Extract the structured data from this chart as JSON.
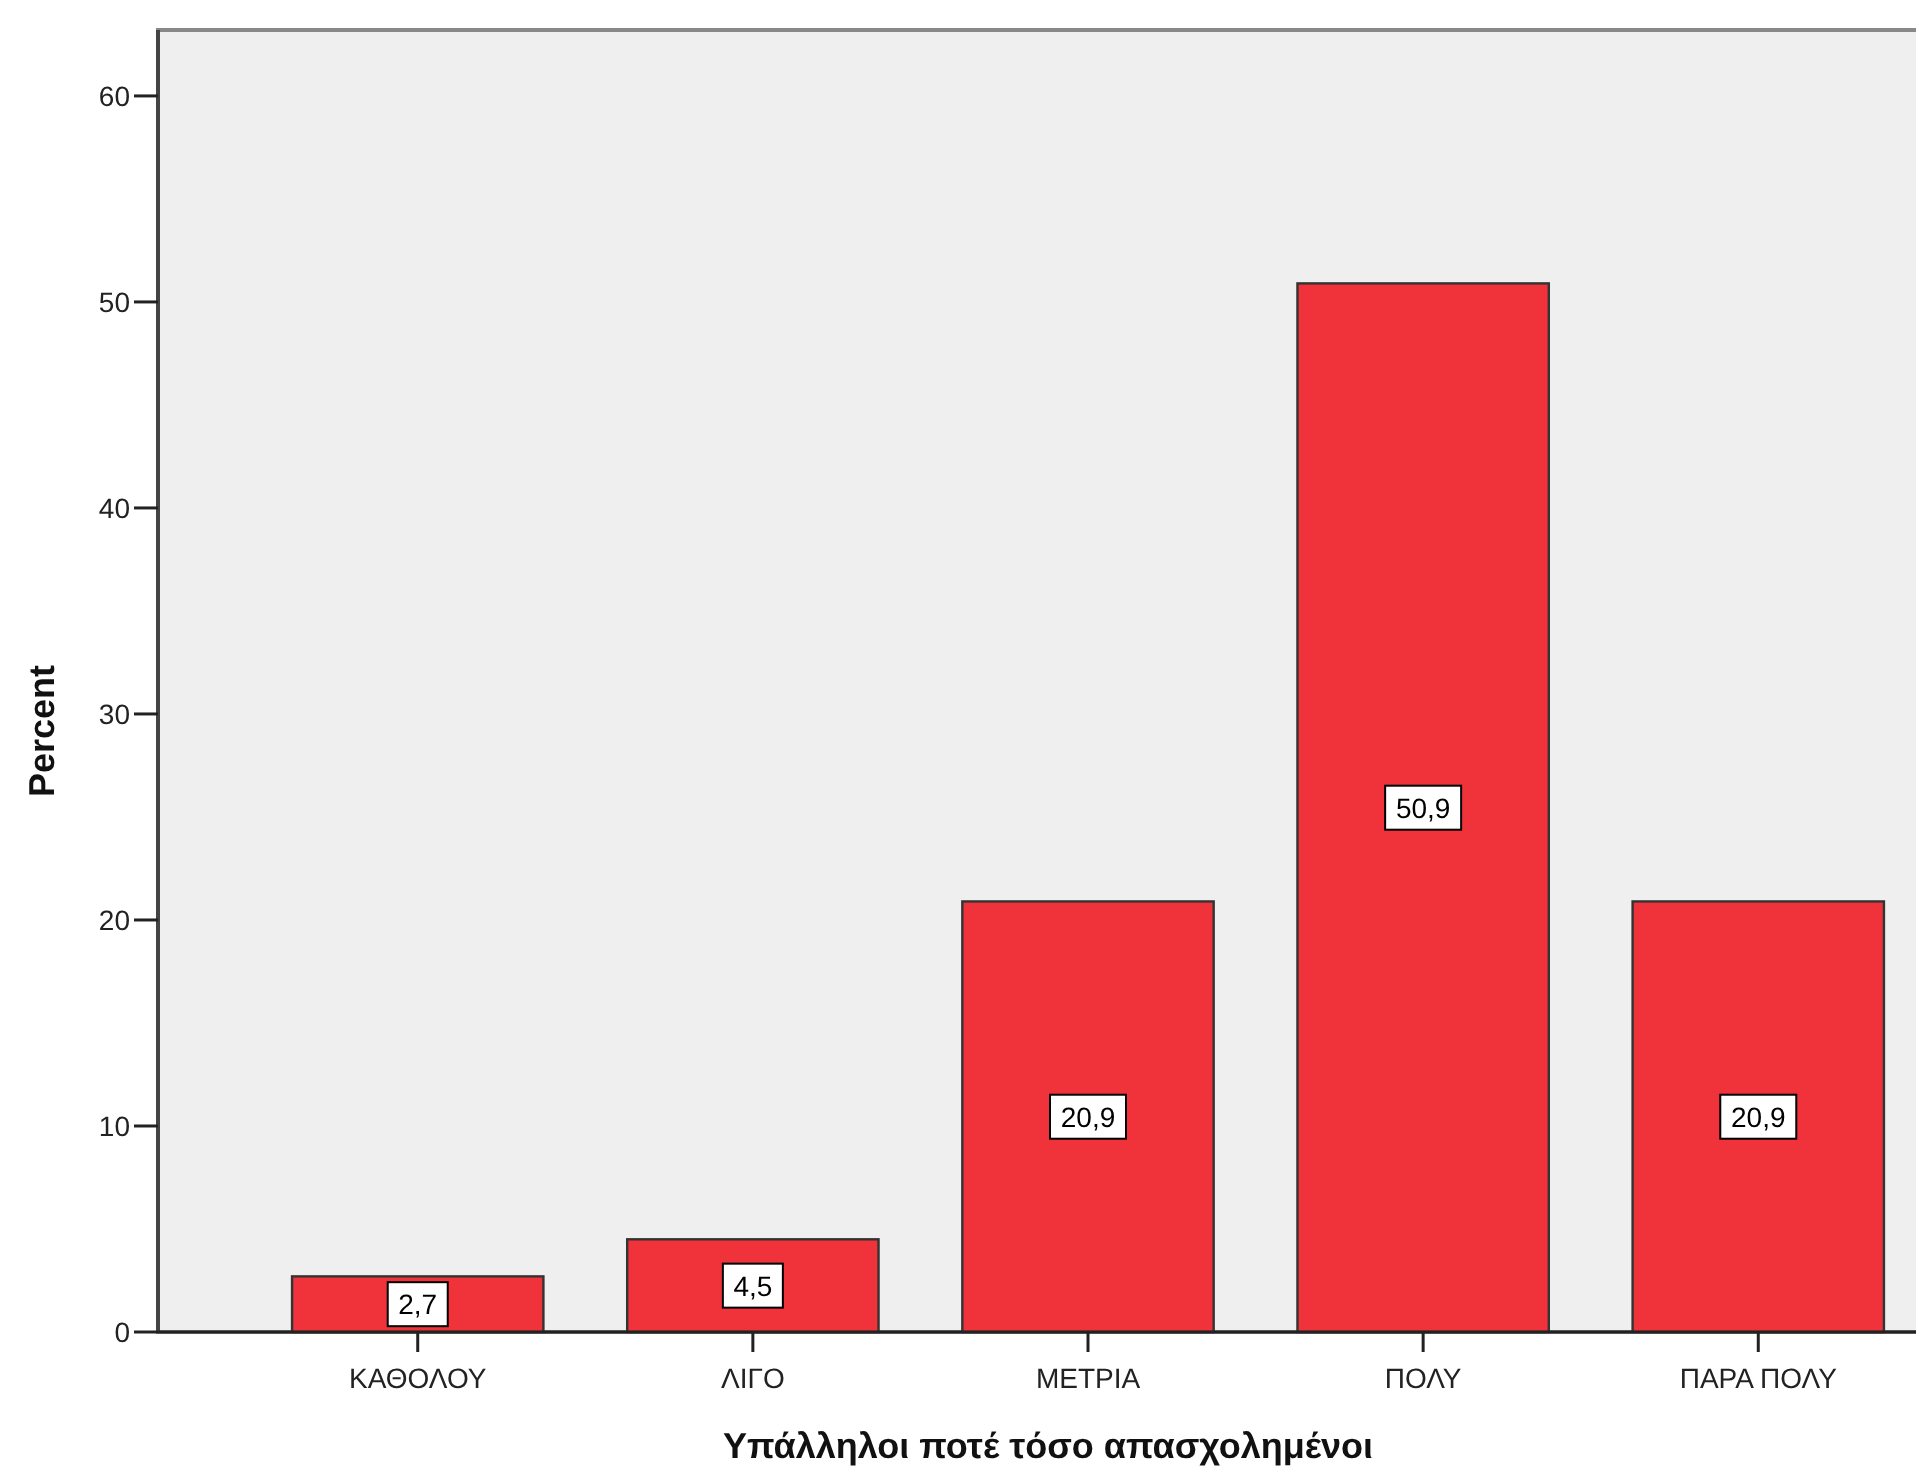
{
  "chart_data": {
    "type": "bar",
    "xlabel": "Υπάλληλοι ποτέ τόσο απασχολημένοι",
    "ylabel": "Percent",
    "categories": [
      "ΚΑΘΟΛΟΥ",
      "ΛΙΓΟ",
      "ΜΕΤΡΙΑ",
      "ΠΟΛΥ",
      "ΠΑΡΑ ΠΟΛΥ"
    ],
    "values": [
      2.7,
      4.5,
      20.9,
      50.9,
      20.9
    ],
    "value_labels": [
      "2,7",
      "4,5",
      "20,9",
      "50,9",
      "20,9"
    ],
    "color": "#f0323a",
    "ylim": [
      0,
      63.2
    ],
    "yticks": [
      0,
      10,
      20,
      30,
      40,
      50,
      60
    ],
    "grid": false
  }
}
